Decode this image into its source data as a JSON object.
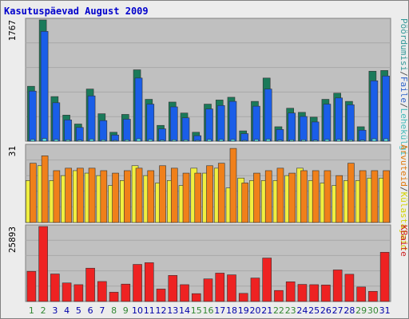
{
  "title": "Kasutuspäevad August 2009",
  "chart_data": [
    {
      "type": "bar",
      "panel": "top",
      "ymax_label": "1767",
      "ylim": [
        0,
        1767
      ],
      "categories": [
        "1",
        "2",
        "3",
        "4",
        "5",
        "6",
        "7",
        "8",
        "9",
        "10",
        "11",
        "12",
        "13",
        "14",
        "15",
        "16",
        "17",
        "18",
        "19",
        "20",
        "21",
        "22",
        "23",
        "24",
        "25",
        "26",
        "27",
        "28",
        "29",
        "30",
        "31"
      ],
      "series": [
        {
          "name": "Pöördumisi",
          "color": "#1a7a5a",
          "values": [
            800,
            1767,
            650,
            380,
            250,
            760,
            400,
            130,
            390,
            1040,
            610,
            230,
            570,
            410,
            130,
            540,
            600,
            640,
            150,
            580,
            920,
            210,
            480,
            420,
            350,
            610,
            700,
            580,
            210,
            1020,
            1030
          ]
        },
        {
          "name": "Faile",
          "color": "#1a5ee8",
          "values": [
            730,
            1600,
            560,
            310,
            200,
            660,
            300,
            90,
            320,
            920,
            540,
            180,
            500,
            340,
            80,
            470,
            520,
            580,
            110,
            510,
            760,
            170,
            410,
            360,
            280,
            540,
            630,
            530,
            160,
            880,
            950
          ]
        },
        {
          "name": "Lehekülgi",
          "color": "#55dddd",
          "values": [
            25,
            40,
            25,
            20,
            15,
            30,
            20,
            10,
            20,
            35,
            25,
            15,
            20,
            20,
            10,
            25,
            25,
            25,
            10,
            25,
            30,
            15,
            20,
            20,
            15,
            25,
            25,
            20,
            15,
            35,
            35
          ]
        }
      ],
      "right_labels": [
        {
          "text": "Pöördumisi",
          "color": "#339999"
        },
        {
          "text": "/",
          "color": "#555555"
        },
        {
          "text": "Faile",
          "color": "#3366cc"
        },
        {
          "text": "/",
          "color": "#555555"
        },
        {
          "text": "Lehekülgi",
          "color": "#44bbbb"
        }
      ]
    },
    {
      "type": "bar",
      "panel": "middle",
      "ymax_label": "31",
      "ylim": [
        0,
        31
      ],
      "categories": [
        "1",
        "2",
        "3",
        "4",
        "5",
        "6",
        "7",
        "8",
        "9",
        "10",
        "11",
        "12",
        "13",
        "14",
        "15",
        "16",
        "17",
        "18",
        "19",
        "20",
        "21",
        "22",
        "23",
        "24",
        "25",
        "26",
        "27",
        "28",
        "29",
        "30",
        "31"
      ],
      "series": [
        {
          "name": "Külastajaid",
          "color": "#f0ef40",
          "values": [
            17,
            23,
            17,
            19,
            21,
            20,
            19,
            15,
            17,
            23,
            19,
            16,
            17,
            15,
            22,
            20,
            22,
            14,
            18,
            17,
            17,
            17,
            19,
            22,
            17,
            16,
            15,
            17,
            17,
            18,
            18
          ]
        },
        {
          "name": "Arvuteid",
          "color": "#f0801a",
          "values": [
            24,
            27,
            21,
            22,
            22,
            22,
            21,
            20,
            21,
            22,
            21,
            23,
            22,
            20,
            20,
            23,
            24,
            30,
            16,
            20,
            21,
            22,
            20,
            21,
            21,
            21,
            19,
            24,
            21,
            21,
            21
          ]
        }
      ],
      "right_labels": [
        {
          "text": "Arvuteid",
          "color": "#e07a10"
        },
        {
          "text": "/",
          "color": "#555555"
        },
        {
          "text": "Külastajaid",
          "color": "#d4d400"
        }
      ]
    },
    {
      "type": "bar",
      "panel": "bottom",
      "ymax_label": "25893",
      "ylim": [
        0,
        25893
      ],
      "categories": [
        "1",
        "2",
        "3",
        "4",
        "5",
        "6",
        "7",
        "8",
        "9",
        "10",
        "11",
        "12",
        "13",
        "14",
        "15",
        "16",
        "17",
        "18",
        "19",
        "20",
        "21",
        "22",
        "23",
        "24",
        "25",
        "26",
        "27",
        "28",
        "29",
        "30",
        "31"
      ],
      "series": [
        {
          "name": "KBaite",
          "color": "#ee2222",
          "values": [
            10400,
            25893,
            9500,
            6400,
            5800,
            11500,
            6900,
            3200,
            6000,
            12800,
            13400,
            4300,
            9000,
            5800,
            2700,
            7800,
            9800,
            9200,
            2800,
            8100,
            15000,
            3800,
            6800,
            5900,
            5800,
            5700,
            10900,
            9400,
            5000,
            3500,
            17000
          ]
        }
      ],
      "right_labels": [
        {
          "text": "KBaite",
          "color": "#cc2222"
        }
      ]
    }
  ],
  "weekend_days": [
    "1",
    "2",
    "8",
    "9",
    "15",
    "16",
    "22",
    "23",
    "29",
    "30"
  ],
  "colors": {
    "plot_bg": "#c0c0c0",
    "frame_bg": "#ececec",
    "weekday": "#0000aa",
    "weekend": "#338833"
  }
}
